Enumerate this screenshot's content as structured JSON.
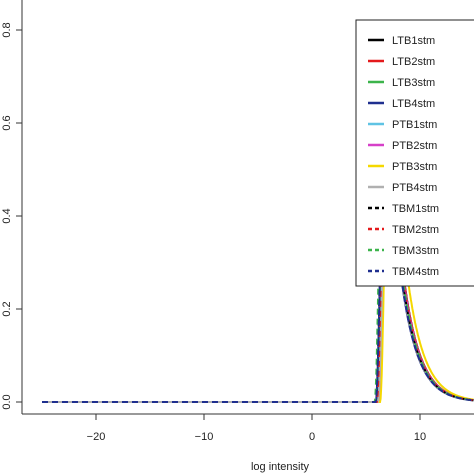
{
  "chart_data": {
    "type": "line",
    "title": "",
    "xlabel": "log intensity",
    "ylabel": "",
    "xlim": [
      -25,
      15
    ],
    "ylim": [
      0,
      0.8
    ],
    "x_ticks": [
      {
        "value": -20,
        "label": "−20"
      },
      {
        "value": -10,
        "label": "−10"
      },
      {
        "value": 0,
        "label": "0"
      },
      {
        "value": 10,
        "label": "10"
      }
    ],
    "y_ticks": [
      {
        "value": 0.0,
        "label": "0.0"
      },
      {
        "value": 0.2,
        "label": "0.2"
      },
      {
        "value": 0.4,
        "label": "0.4"
      },
      {
        "value": 0.6,
        "label": "0.6"
      },
      {
        "value": 0.8,
        "label": "0.8"
      }
    ],
    "grid": false,
    "legend_position": "top-right",
    "series": [
      {
        "name": "LTB1stm",
        "color": "#000000",
        "dash": "solid",
        "peak_x": 6.9,
        "peak_y": 0.75
      },
      {
        "name": "LTB2stm",
        "color": "#e41a1c",
        "dash": "solid",
        "peak_x": 7.0,
        "peak_y": 0.7
      },
      {
        "name": "LTB3stm",
        "color": "#3cb44b",
        "dash": "solid",
        "peak_x": 6.9,
        "peak_y": 0.72
      },
      {
        "name": "LTB4stm",
        "color": "#1f2f8f",
        "dash": "solid",
        "peak_x": 6.8,
        "peak_y": 0.69
      },
      {
        "name": "PTB1stm",
        "color": "#5fc3e4",
        "dash": "solid",
        "peak_x": 7.0,
        "peak_y": 0.66
      },
      {
        "name": "PTB2stm",
        "color": "#d640c8",
        "dash": "solid",
        "peak_x": 7.1,
        "peak_y": 0.64
      },
      {
        "name": "PTB3stm",
        "color": "#f5d800",
        "dash": "solid",
        "peak_x": 7.2,
        "peak_y": 0.78
      },
      {
        "name": "PTB4stm",
        "color": "#b0b0b0",
        "dash": "solid",
        "peak_x": 7.0,
        "peak_y": 0.62
      },
      {
        "name": "TBM1stm",
        "color": "#000000",
        "dash": "dashed",
        "peak_x": 6.8,
        "peak_y": 0.73
      },
      {
        "name": "TBM2stm",
        "color": "#e41a1c",
        "dash": "dashed",
        "peak_x": 6.9,
        "peak_y": 0.71
      },
      {
        "name": "TBM3stm",
        "color": "#3cb44b",
        "dash": "dashed",
        "peak_x": 6.7,
        "peak_y": 0.8
      },
      {
        "name": "TBM4stm",
        "color": "#1f2f8f",
        "dash": "dashed",
        "peak_x": 6.8,
        "peak_y": 0.7
      }
    ]
  }
}
